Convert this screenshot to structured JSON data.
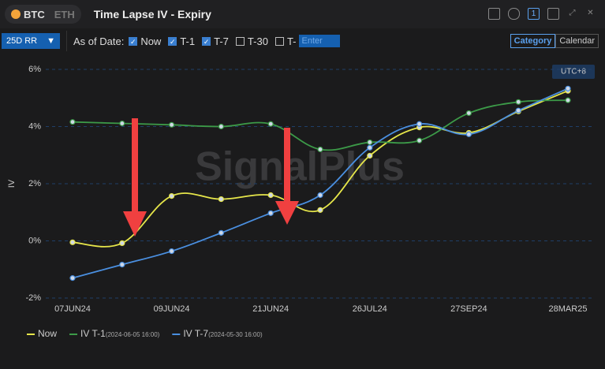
{
  "ui": {
    "coins": [
      "BTC",
      "ETH"
    ],
    "title": "Time Lapse IV - Expiry",
    "badge": "1",
    "metric": "25D RR",
    "as_of_label": "As of Date:",
    "as_of_options": [
      {
        "label": "Now",
        "checked": true
      },
      {
        "label": "T-1",
        "checked": true
      },
      {
        "label": "T-7",
        "checked": true
      },
      {
        "label": "T-30",
        "checked": false
      },
      {
        "label": "T-",
        "checked": false
      }
    ],
    "enter_placeholder": "Enter",
    "tabs": [
      {
        "label": "Category",
        "active": true
      },
      {
        "label": "Calendar",
        "active": false
      }
    ]
  },
  "chart_data": {
    "type": "line",
    "ylabel": "IV",
    "timezone": "UTC+8",
    "watermark": "SignalPlus",
    "categories": [
      "07JUN24",
      null,
      "09JUN24",
      null,
      "21JUN24",
      null,
      "26JUL24",
      null,
      "27SEP24",
      null,
      "28MAR25"
    ],
    "ylim": [
      -2,
      6
    ],
    "yticks": [
      {
        "value": -2,
        "label": "-2%"
      },
      {
        "value": 0,
        "label": "0%"
      },
      {
        "value": 2,
        "label": "2%"
      },
      {
        "value": 4,
        "label": "4%"
      },
      {
        "value": 6,
        "label": "6%"
      }
    ],
    "grid": true,
    "series": [
      {
        "name": "Now",
        "color": "#e6e64a",
        "values": [
          -0.05,
          -0.08,
          1.57,
          1.46,
          1.6,
          1.08,
          2.98,
          3.97,
          3.78,
          4.53,
          5.25
        ]
      },
      {
        "name": "IV T-1",
        "as_of": "(2024-06-05 16:00)",
        "color": "#3c9a48",
        "values": [
          4.16,
          4.11,
          4.06,
          4.0,
          4.09,
          3.2,
          3.45,
          3.51,
          4.47,
          4.86,
          4.92
        ]
      },
      {
        "name": "IV T-7",
        "as_of": "(2024-05-30 16:00)",
        "color": "#4a8fe0",
        "values": [
          -1.3,
          -0.83,
          -0.36,
          0.28,
          0.97,
          1.6,
          3.26,
          4.09,
          3.73,
          4.56,
          5.33
        ]
      }
    ]
  }
}
